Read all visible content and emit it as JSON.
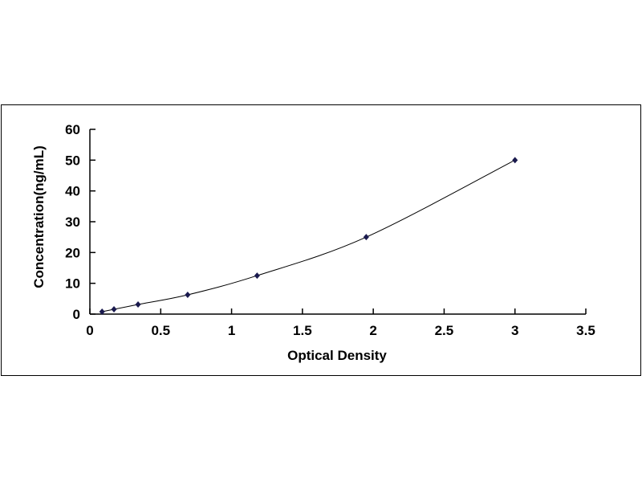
{
  "chart_data": {
    "type": "scatter",
    "title": "",
    "xlabel": "Optical Density",
    "ylabel": "Concentration(ng/mL)",
    "xlim": [
      0,
      3.5
    ],
    "ylim": [
      0,
      60
    ],
    "xticks": [
      "0",
      "0.5",
      "1",
      "1.5",
      "2",
      "2.5",
      "3",
      "3.5"
    ],
    "yticks": [
      "0",
      "10",
      "20",
      "30",
      "40",
      "50",
      "60"
    ],
    "grid": false,
    "trendline": "smooth curve",
    "marker_color": "#1a1a4e",
    "line_color": "#000000",
    "points": [
      {
        "x": 0.086,
        "y": 0.78
      },
      {
        "x": 0.17,
        "y": 1.56
      },
      {
        "x": 0.34,
        "y": 3.12
      },
      {
        "x": 0.69,
        "y": 6.25
      },
      {
        "x": 1.18,
        "y": 12.5
      },
      {
        "x": 1.95,
        "y": 25
      },
      {
        "x": 3.0,
        "y": 50
      }
    ]
  }
}
